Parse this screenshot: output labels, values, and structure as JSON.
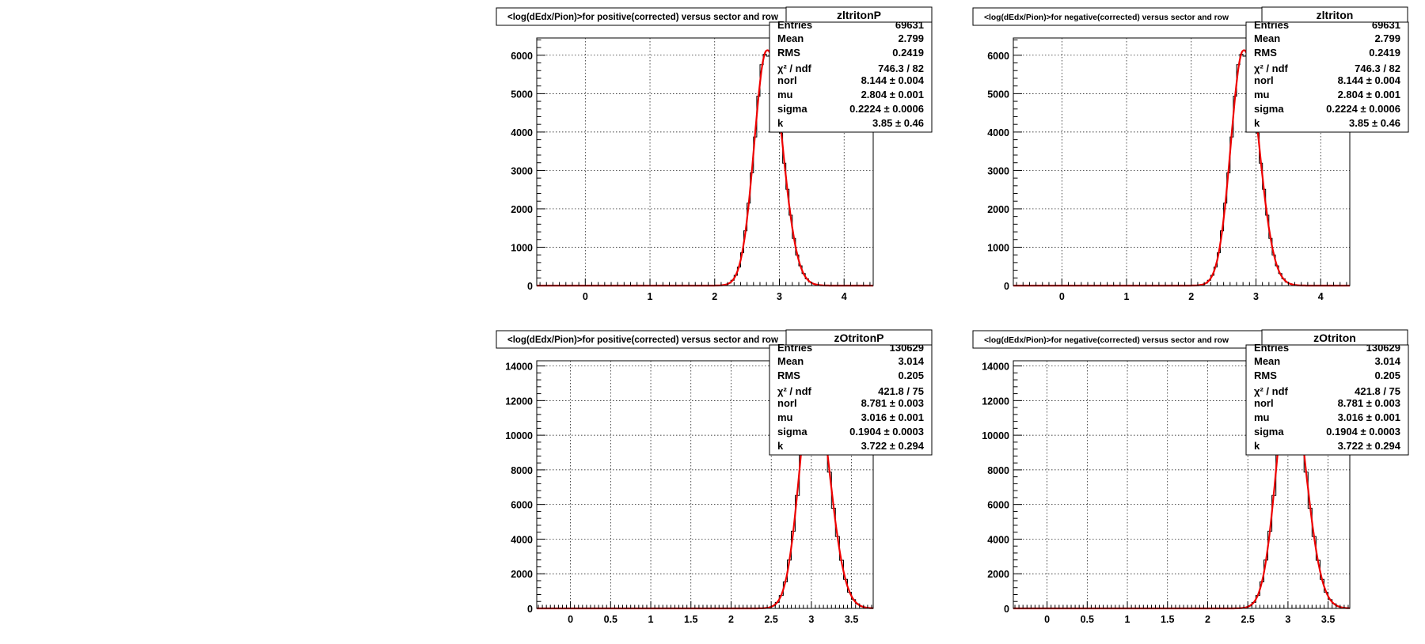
{
  "colors": {
    "fit": "#ee0000",
    "hist": "#000000",
    "grid": "#000000",
    "frame": "#000000",
    "background": "#ffffff"
  },
  "chart_data": [
    {
      "type": "histogram",
      "name": "zltritonP",
      "title": "<log(dEdx/Pion)>for positive(corrected) versus sector and row",
      "xlim": [
        -0.75,
        4.45
      ],
      "ylim": [
        0,
        6450
      ],
      "xticks": [
        0,
        1,
        2,
        3,
        4
      ],
      "xtick_labels": [
        "0",
        "1",
        "2",
        "3",
        "4"
      ],
      "yticks": [
        0,
        1000,
        2000,
        3000,
        4000,
        5000,
        6000
      ],
      "ytick_labels": [
        "0",
        "1000",
        "2000",
        "3000",
        "4000",
        "5000",
        "6000"
      ],
      "grid": true,
      "stats": [
        {
          "label": "Entries",
          "value": "69631"
        },
        {
          "label": "Mean",
          "value": "2.799"
        },
        {
          "label": "RMS",
          "value": "0.2419"
        },
        {
          "label": "χ² / ndf",
          "value": "746.3 / 82"
        },
        {
          "label": "norl",
          "value": "8.144 ± 0.004"
        },
        {
          "label": "mu",
          "value": "2.804 ± 0.001"
        },
        {
          "label": "sigma",
          "value": "0.2224 ± 0.0006"
        },
        {
          "label": "k",
          "value": "3.85 ± 0.46"
        }
      ],
      "fit": {
        "norl": 8.144,
        "mu": 2.804,
        "sigma": 0.2224,
        "k": 3.85,
        "peak": 6120
      },
      "bin_width": 0.05
    },
    {
      "type": "histogram",
      "name": "zltriton",
      "title": "<log(dEdx/Pion)>for negative(corrected) versus sector and row",
      "xlim": [
        -0.75,
        4.45
      ],
      "ylim": [
        0,
        6450
      ],
      "xticks": [
        0,
        1,
        2,
        3,
        4
      ],
      "xtick_labels": [
        "0",
        "1",
        "2",
        "3",
        "4"
      ],
      "yticks": [
        0,
        1000,
        2000,
        3000,
        4000,
        5000,
        6000
      ],
      "ytick_labels": [
        "0",
        "1000",
        "2000",
        "3000",
        "4000",
        "5000",
        "6000"
      ],
      "grid": true,
      "stats": [
        {
          "label": "Entries",
          "value": "69631"
        },
        {
          "label": "Mean",
          "value": "2.799"
        },
        {
          "label": "RMS",
          "value": "0.2419"
        },
        {
          "label": "χ² / ndf",
          "value": "746.3 / 82"
        },
        {
          "label": "norl",
          "value": "8.144 ± 0.004"
        },
        {
          "label": "mu",
          "value": "2.804 ± 0.001"
        },
        {
          "label": "sigma",
          "value": "0.2224 ± 0.0006"
        },
        {
          "label": "k",
          "value": "3.85 ± 0.46"
        }
      ],
      "fit": {
        "norl": 8.144,
        "mu": 2.804,
        "sigma": 0.2224,
        "k": 3.85,
        "peak": 6120
      },
      "bin_width": 0.05
    },
    {
      "type": "histogram",
      "name": "zOtritonP",
      "title": "<log(dEdx/Pion)>for positive(corrected) versus sector and row",
      "xlim": [
        -0.42,
        3.77
      ],
      "ylim": [
        0,
        14300
      ],
      "xticks": [
        0,
        0.5,
        1,
        1.5,
        2,
        2.5,
        3,
        3.5
      ],
      "xtick_labels": [
        "0",
        "0.5",
        "1",
        "1.5",
        "2",
        "2.5",
        "3",
        "3.5"
      ],
      "yticks": [
        0,
        2000,
        4000,
        6000,
        8000,
        10000,
        12000,
        14000
      ],
      "ytick_labels": [
        "0",
        "2000",
        "4000",
        "6000",
        "8000",
        "10000",
        "12000",
        "14000"
      ],
      "grid": true,
      "stats": [
        {
          "label": "Entries",
          "value": "130629"
        },
        {
          "label": "Mean",
          "value": "3.014"
        },
        {
          "label": "RMS",
          "value": "0.205"
        },
        {
          "label": "χ² / ndf",
          "value": "421.8 / 75"
        },
        {
          "label": "norl",
          "value": "8.781 ± 0.003"
        },
        {
          "label": "mu",
          "value": "3.016 ± 0.001"
        },
        {
          "label": "sigma",
          "value": "0.1904 ± 0.0003"
        },
        {
          "label": "k",
          "value": "3.722 ± 0.294"
        }
      ],
      "fit": {
        "norl": 8.781,
        "mu": 3.016,
        "sigma": 0.1904,
        "k": 3.722,
        "peak": 13200
      },
      "bin_width": 0.05
    },
    {
      "type": "histogram",
      "name": "zOtriton",
      "title": "<log(dEdx/Pion)>for negative(corrected) versus sector and row",
      "xlim": [
        -0.42,
        3.77
      ],
      "ylim": [
        0,
        14300
      ],
      "xticks": [
        0,
        0.5,
        1,
        1.5,
        2,
        2.5,
        3,
        3.5
      ],
      "xtick_labels": [
        "0",
        "0.5",
        "1",
        "1.5",
        "2",
        "2.5",
        "3",
        "3.5"
      ],
      "yticks": [
        0,
        2000,
        4000,
        6000,
        8000,
        10000,
        12000,
        14000
      ],
      "ytick_labels": [
        "0",
        "2000",
        "4000",
        "6000",
        "8000",
        "10000",
        "12000",
        "14000"
      ],
      "grid": true,
      "stats": [
        {
          "label": "Entries",
          "value": "130629"
        },
        {
          "label": "Mean",
          "value": "3.014"
        },
        {
          "label": "RMS",
          "value": "0.205"
        },
        {
          "label": "χ² / ndf",
          "value": "421.8 / 75"
        },
        {
          "label": "norl",
          "value": "8.781 ± 0.003"
        },
        {
          "label": "mu",
          "value": "3.016 ± 0.001"
        },
        {
          "label": "sigma",
          "value": "0.1904 ± 0.0003"
        },
        {
          "label": "k",
          "value": "3.722 ± 0.294"
        }
      ],
      "fit": {
        "norl": 8.781,
        "mu": 3.016,
        "sigma": 0.1904,
        "k": 3.722,
        "peak": 13200
      },
      "bin_width": 0.05
    }
  ]
}
